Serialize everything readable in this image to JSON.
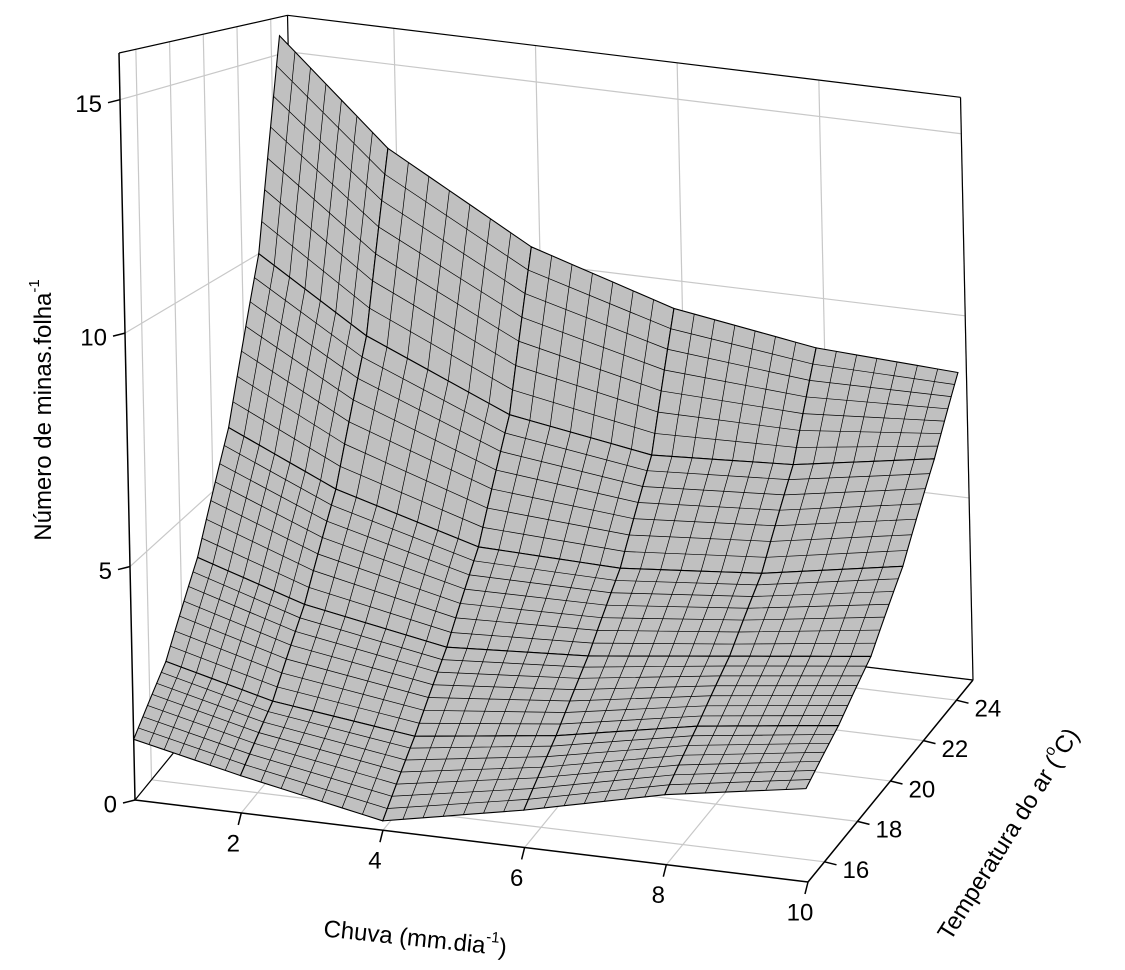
{
  "chart_data": {
    "type": "surface",
    "x_label": {
      "text": "Chuva (mm.dia",
      "sup": "-1",
      "tail": ")"
    },
    "y_label": {
      "text": "Temperatura do ar (",
      "sup": "o",
      "tail": "C)"
    },
    "z_label": {
      "text": "Número de minas.folha",
      "sup": "-1"
    },
    "x": [
      0.5,
      2,
      4,
      6,
      8,
      10
    ],
    "y": [
      15,
      17,
      19,
      21,
      23,
      24.5
    ],
    "z": [
      [
        1.3,
        0.8,
        0.2,
        0.8,
        1.5,
        2.0
      ],
      [
        2.2,
        1.6,
        1.2,
        1.6,
        2.2,
        2.6
      ],
      [
        3.8,
        3.0,
        2.4,
        2.6,
        3.0,
        3.4
      ],
      [
        6.2,
        5.0,
        4.0,
        3.9,
        4.2,
        4.8
      ],
      [
        10.0,
        8.2,
        6.6,
        6.0,
        6.2,
        6.8
      ],
      [
        15.5,
        12.8,
        10.6,
        9.4,
        8.8,
        8.6
      ]
    ],
    "xlim": [
      0.5,
      10
    ],
    "xticks": [
      2,
      4,
      6,
      8,
      10
    ],
    "ylim": [
      15,
      25
    ],
    "yticks": [
      16,
      18,
      20,
      22,
      24
    ],
    "zlim": [
      0,
      16
    ],
    "zticks": [
      0,
      5,
      10,
      15
    ],
    "color": "#c0c0c0",
    "grid": true
  }
}
